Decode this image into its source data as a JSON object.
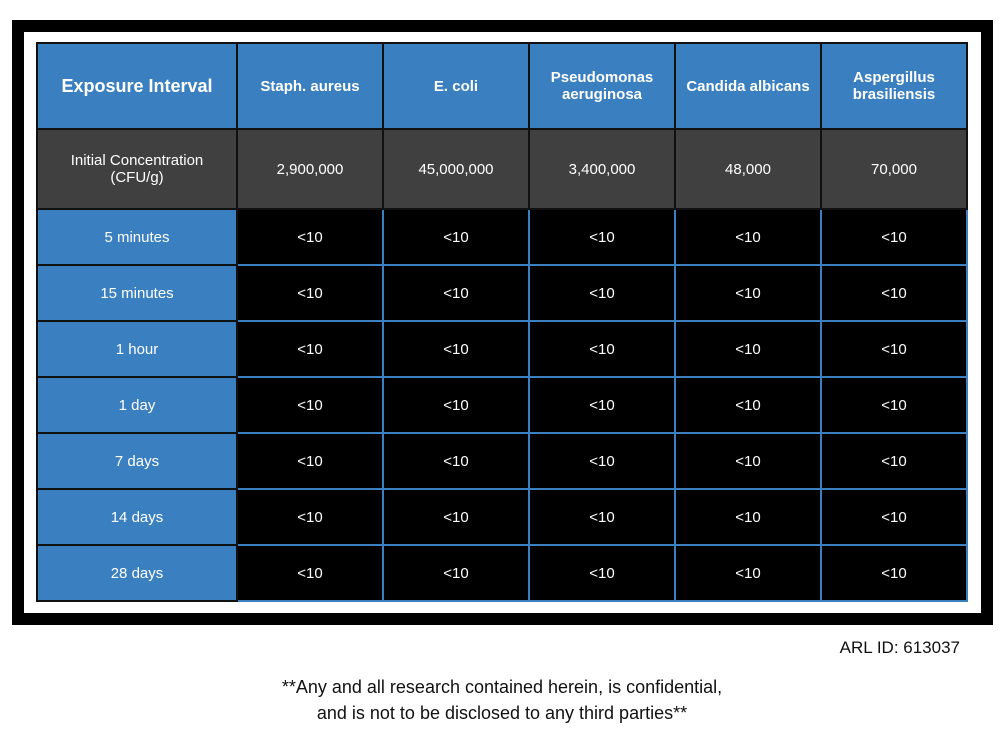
{
  "table": {
    "header": [
      "Exposure Interval",
      "Staph. aureus",
      "E. coli",
      "Pseudomonas aeruginosa",
      "Candida albicans",
      "Aspergillus brasiliensis"
    ],
    "rows": [
      [
        "Initial Concentration (CFU/g)",
        "2,900,000",
        "45,000,000",
        "3,400,000",
        "48,000",
        "70,000"
      ],
      [
        "5 minutes",
        "<10",
        "<10",
        "<10",
        "<10",
        "<10"
      ],
      [
        "15 minutes",
        "<10",
        "<10",
        "<10",
        "<10",
        "<10"
      ],
      [
        "1 hour",
        "<10",
        "<10",
        "<10",
        "<10",
        "<10"
      ],
      [
        "1 day",
        "<10",
        "<10",
        "<10",
        "<10",
        "<10"
      ],
      [
        "7 days",
        "<10",
        "<10",
        "<10",
        "<10",
        "<10"
      ],
      [
        "14 days",
        "<10",
        "<10",
        "<10",
        "<10",
        "<10"
      ],
      [
        "28 days",
        "<10",
        "<10",
        "<10",
        "<10",
        "<10"
      ]
    ]
  },
  "footer": {
    "arl_id": "ARL ID: 613037",
    "note": [
      "**Any and all research contained herein, is confidential,",
      "and is not to be disclosed to any third parties**"
    ]
  }
}
